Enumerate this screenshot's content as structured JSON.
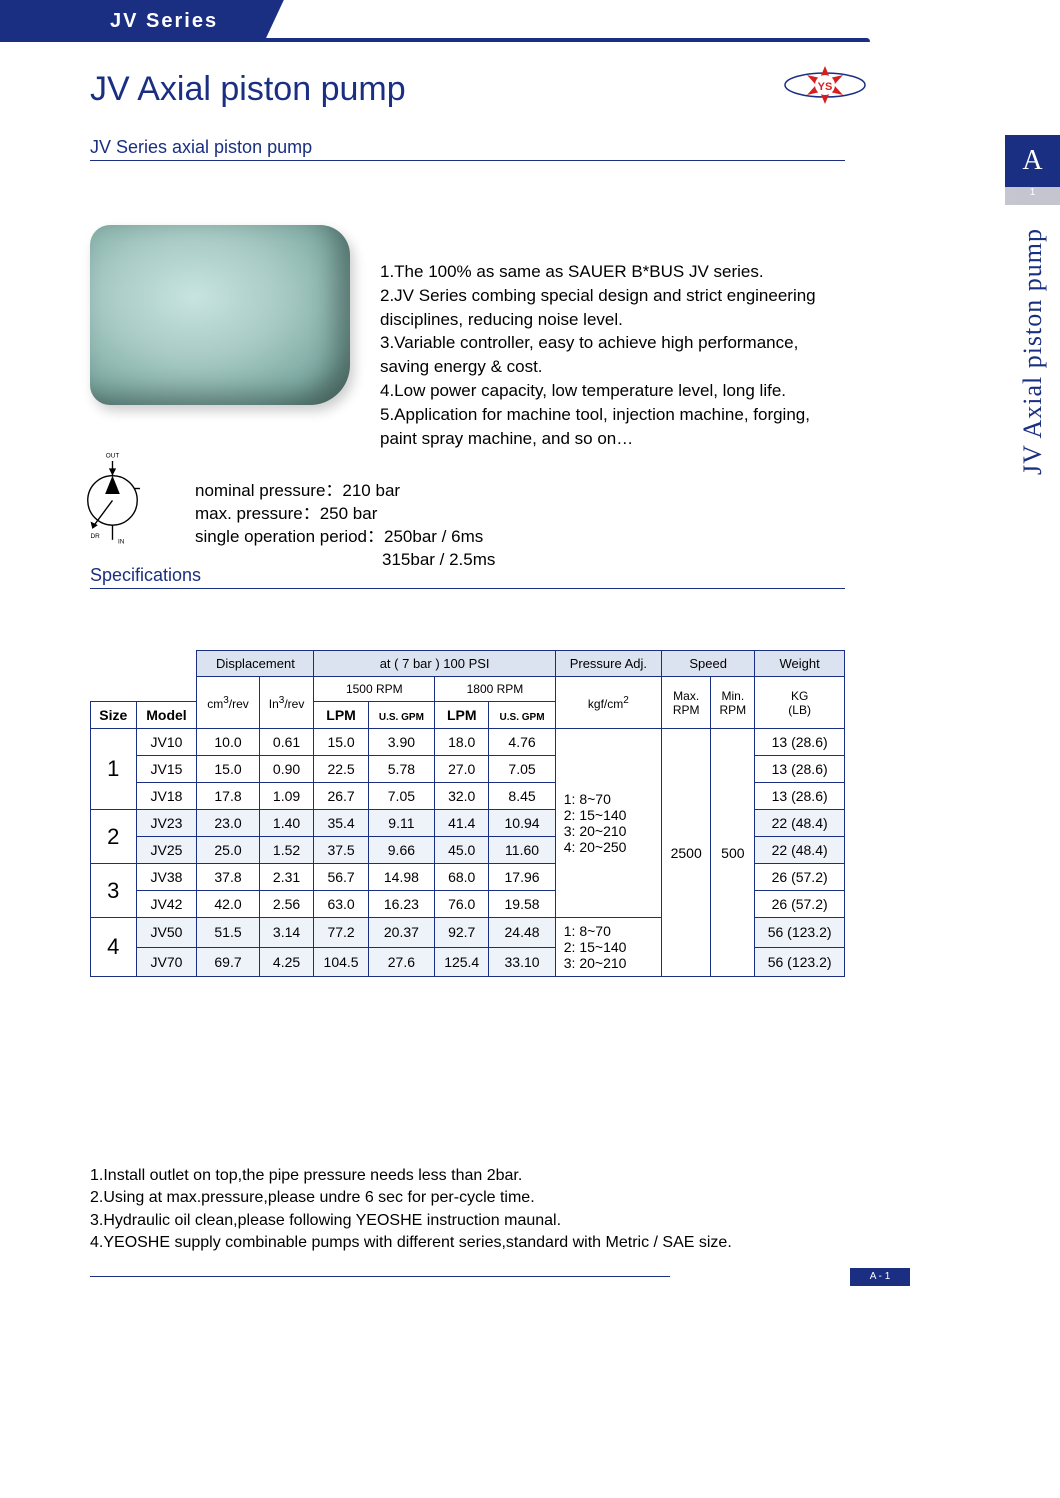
{
  "series_label": "JV Series",
  "main_title": "JV Axial piston pump",
  "sub_title": "JV  Series axial piston pump",
  "right_tab": "A",
  "right_tab_small": "1",
  "vertical_label": "JV Axial piston pump",
  "features": [
    "1.The 100% as same as SAUER B*BUS JV series.",
    "2.JV Series combing special design and strict engineering disciplines, reducing noise level.",
    "3.Variable controller, easy to achieve high performance, saving energy & cost.",
    "4.Low power capacity, low temperature level, long life.",
    "5.Application for machine tool, injection machine, forging, paint spray machine, and so on…"
  ],
  "diagram_labels": {
    "out": "OUT",
    "in": "IN",
    "dr": "DR"
  },
  "pressure_specs": [
    "nominal pressure：210 bar",
    "max. pressure：250 bar",
    "single operation period：250bar / 6ms",
    "　　　　　　　　　　　315bar / 2.5ms"
  ],
  "spec_heading": "Specifications",
  "table": {
    "header1": {
      "displacement": "Displacement",
      "at7bar": "at ( 7 bar ) 100 PSI",
      "pressure_adj": "Pressure Adj.",
      "speed": "Speed",
      "weight": "Weight"
    },
    "header2": {
      "size": "Size",
      "model": "Model",
      "cm3rev": "cm³/rev",
      "in3rev": "In³/rev",
      "rpm1500": "1500 RPM",
      "rpm1800": "1800 RPM",
      "lpm": "LPM",
      "usgpm": "U.S. GPM",
      "kgfcm2": "kgf/cm²",
      "maxrpm": "Max. RPM",
      "minrpm": "Min. RPM",
      "kglb": "KG (LB)"
    },
    "pressure_ranges_1_3": "1: 8~70\n2: 15~140\n3: 20~210\n4: 20~250",
    "pressure_ranges_4": "1: 8~70\n2: 15~140\n3: 20~210",
    "max_rpm": "2500",
    "min_rpm": "500",
    "groups": [
      {
        "size": "1",
        "rows": [
          {
            "model": "JV10",
            "cm3": "10.0",
            "in3": "0.61",
            "lpm15": "15.0",
            "gpm15": "3.90",
            "lpm18": "18.0",
            "gpm18": "4.76",
            "weight": "13 (28.6)"
          },
          {
            "model": "JV15",
            "cm3": "15.0",
            "in3": "0.90",
            "lpm15": "22.5",
            "gpm15": "5.78",
            "lpm18": "27.0",
            "gpm18": "7.05",
            "weight": "13 (28.6)"
          },
          {
            "model": "JV18",
            "cm3": "17.8",
            "in3": "1.09",
            "lpm15": "26.7",
            "gpm15": "7.05",
            "lpm18": "32.0",
            "gpm18": "8.45",
            "weight": "13 (28.6)"
          }
        ]
      },
      {
        "size": "2",
        "rows": [
          {
            "model": "JV23",
            "cm3": "23.0",
            "in3": "1.40",
            "lpm15": "35.4",
            "gpm15": "9.11",
            "lpm18": "41.4",
            "gpm18": "10.94",
            "weight": "22 (48.4)"
          },
          {
            "model": "JV25",
            "cm3": "25.0",
            "in3": "1.52",
            "lpm15": "37.5",
            "gpm15": "9.66",
            "lpm18": "45.0",
            "gpm18": "11.60",
            "weight": "22 (48.4)"
          }
        ]
      },
      {
        "size": "3",
        "rows": [
          {
            "model": "JV38",
            "cm3": "37.8",
            "in3": "2.31",
            "lpm15": "56.7",
            "gpm15": "14.98",
            "lpm18": "68.0",
            "gpm18": "17.96",
            "weight": "26 (57.2)"
          },
          {
            "model": "JV42",
            "cm3": "42.0",
            "in3": "2.56",
            "lpm15": "63.0",
            "gpm15": "16.23",
            "lpm18": "76.0",
            "gpm18": "19.58",
            "weight": "26 (57.2)"
          }
        ]
      },
      {
        "size": "4",
        "rows": [
          {
            "model": "JV50",
            "cm3": "51.5",
            "in3": "3.14",
            "lpm15": "77.2",
            "gpm15": "20.37",
            "lpm18": "92.7",
            "gpm18": "24.48",
            "weight": "56 (123.2)"
          },
          {
            "model": "JV70",
            "cm3": "69.7",
            "in3": "4.25",
            "lpm15": "104.5",
            "gpm15": "27.6",
            "lpm18": "125.4",
            "gpm18": "33.10",
            "weight": "56 (123.2)"
          }
        ]
      }
    ]
  },
  "notes": [
    "1.Install outlet on top,the pipe pressure needs less than 2bar.",
    "2.Using at max.pressure,please undre 6 sec for per-cycle time.",
    "3.Hydraulic oil clean,please following YEOSHE instruction maunal.",
    "4.YEOSHE supply combinable pumps with different series,standard with Metric / SAE size."
  ],
  "footer_tag": "A - 1",
  "logo_badge": "YS",
  "colors": {
    "brand": "#1a2f82",
    "header_bg": "#dce3f0",
    "alt_row": "#eef2f9",
    "logo_red": "#d62020"
  }
}
